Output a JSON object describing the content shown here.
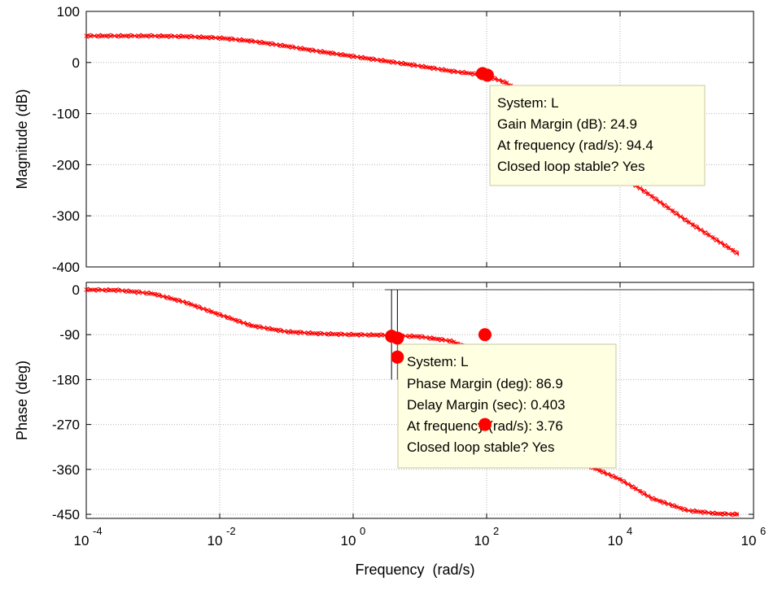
{
  "chart_data": [
    {
      "type": "line",
      "panel": "magnitude",
      "xscale": "log",
      "xlim": [
        0.0001,
        1000000
      ],
      "ylim": [
        -400,
        100
      ],
      "yticks": [
        100,
        0,
        -100,
        -200,
        -300,
        -400
      ],
      "ytick_labels": [
        "100",
        "0",
        "-100",
        "-200",
        "-300",
        "-400"
      ],
      "ylabel": "Magnitude (dB)",
      "grid": true,
      "color": "#ff0000",
      "series": [
        {
          "x": [
            0.0001,
            0.001,
            0.003,
            0.01,
            0.03,
            0.1,
            0.3,
            1,
            3,
            10,
            30,
            94.4,
            200,
            500,
            1000,
            3000,
            10000,
            30000,
            100000,
            300000,
            600000
          ],
          "y": [
            52,
            52,
            51,
            48,
            42,
            32,
            22,
            12,
            3,
            -7,
            -17,
            -24.9,
            -40,
            -75,
            -120,
            -175,
            -220,
            -262,
            -310,
            -350,
            -375
          ]
        }
      ],
      "markers": [
        {
          "x": 94.4,
          "y": -24.9
        }
      ],
      "datatip": {
        "lines": [
          "System: L",
          "Gain Margin (dB): 24.9",
          "At frequency (rad/s): 94.4",
          "Closed loop stable? Yes"
        ]
      }
    },
    {
      "type": "line",
      "panel": "phase",
      "xscale": "log",
      "xlim": [
        0.0001,
        1000000
      ],
      "ylim": [
        -460,
        0
      ],
      "yticks": [
        0,
        -90,
        -180,
        -270,
        -360,
        -450
      ],
      "ytick_labels": [
        "0",
        "-90",
        "-180",
        "-270",
        "-360",
        "-450"
      ],
      "ylabel": "Phase (deg)",
      "xlabel": "Frequency  (rad/s)",
      "xticks": [
        0.0001,
        0.01,
        1,
        100,
        10000,
        1000000
      ],
      "xtick_labels": [
        {
          "base": "10",
          "exp": "-4"
        },
        {
          "base": "10",
          "exp": "-2"
        },
        {
          "base": "10",
          "exp": "0"
        },
        {
          "base": "10",
          "exp": "2"
        },
        {
          "base": "10",
          "exp": "4"
        },
        {
          "base": "10",
          "exp": "6"
        }
      ],
      "grid": true,
      "color": "#ff0000",
      "series": [
        {
          "x": [
            0.0001,
            0.0003,
            0.001,
            0.003,
            0.01,
            0.03,
            0.1,
            0.3,
            1,
            3,
            10,
            30,
            100,
            300,
            1000,
            3000,
            10000,
            30000,
            100000,
            300000,
            600000
          ],
          "y": [
            0,
            -1,
            -8,
            -25,
            -50,
            -72,
            -84,
            -88,
            -90,
            -91,
            -94,
            -103,
            -133,
            -200,
            -280,
            -350,
            -380,
            -418,
            -442,
            -449,
            -450
          ]
        }
      ],
      "markers": [
        {
          "x": 3.76,
          "y": -93.1
        },
        {
          "x": 4.6,
          "y": -97
        },
        {
          "x": 4.6,
          "y": -135
        },
        {
          "x": 94.4,
          "y": -90
        },
        {
          "x": 94.4,
          "y": -270
        }
      ],
      "crossover_lines_x": [
        3.76,
        4.6
      ],
      "datatip": {
        "lines": [
          "System: L",
          "Phase Margin (deg): 86.9",
          "Delay Margin (sec): 0.403",
          "At frequency (rad/s): 3.76",
          "Closed loop stable? Yes"
        ]
      }
    }
  ]
}
